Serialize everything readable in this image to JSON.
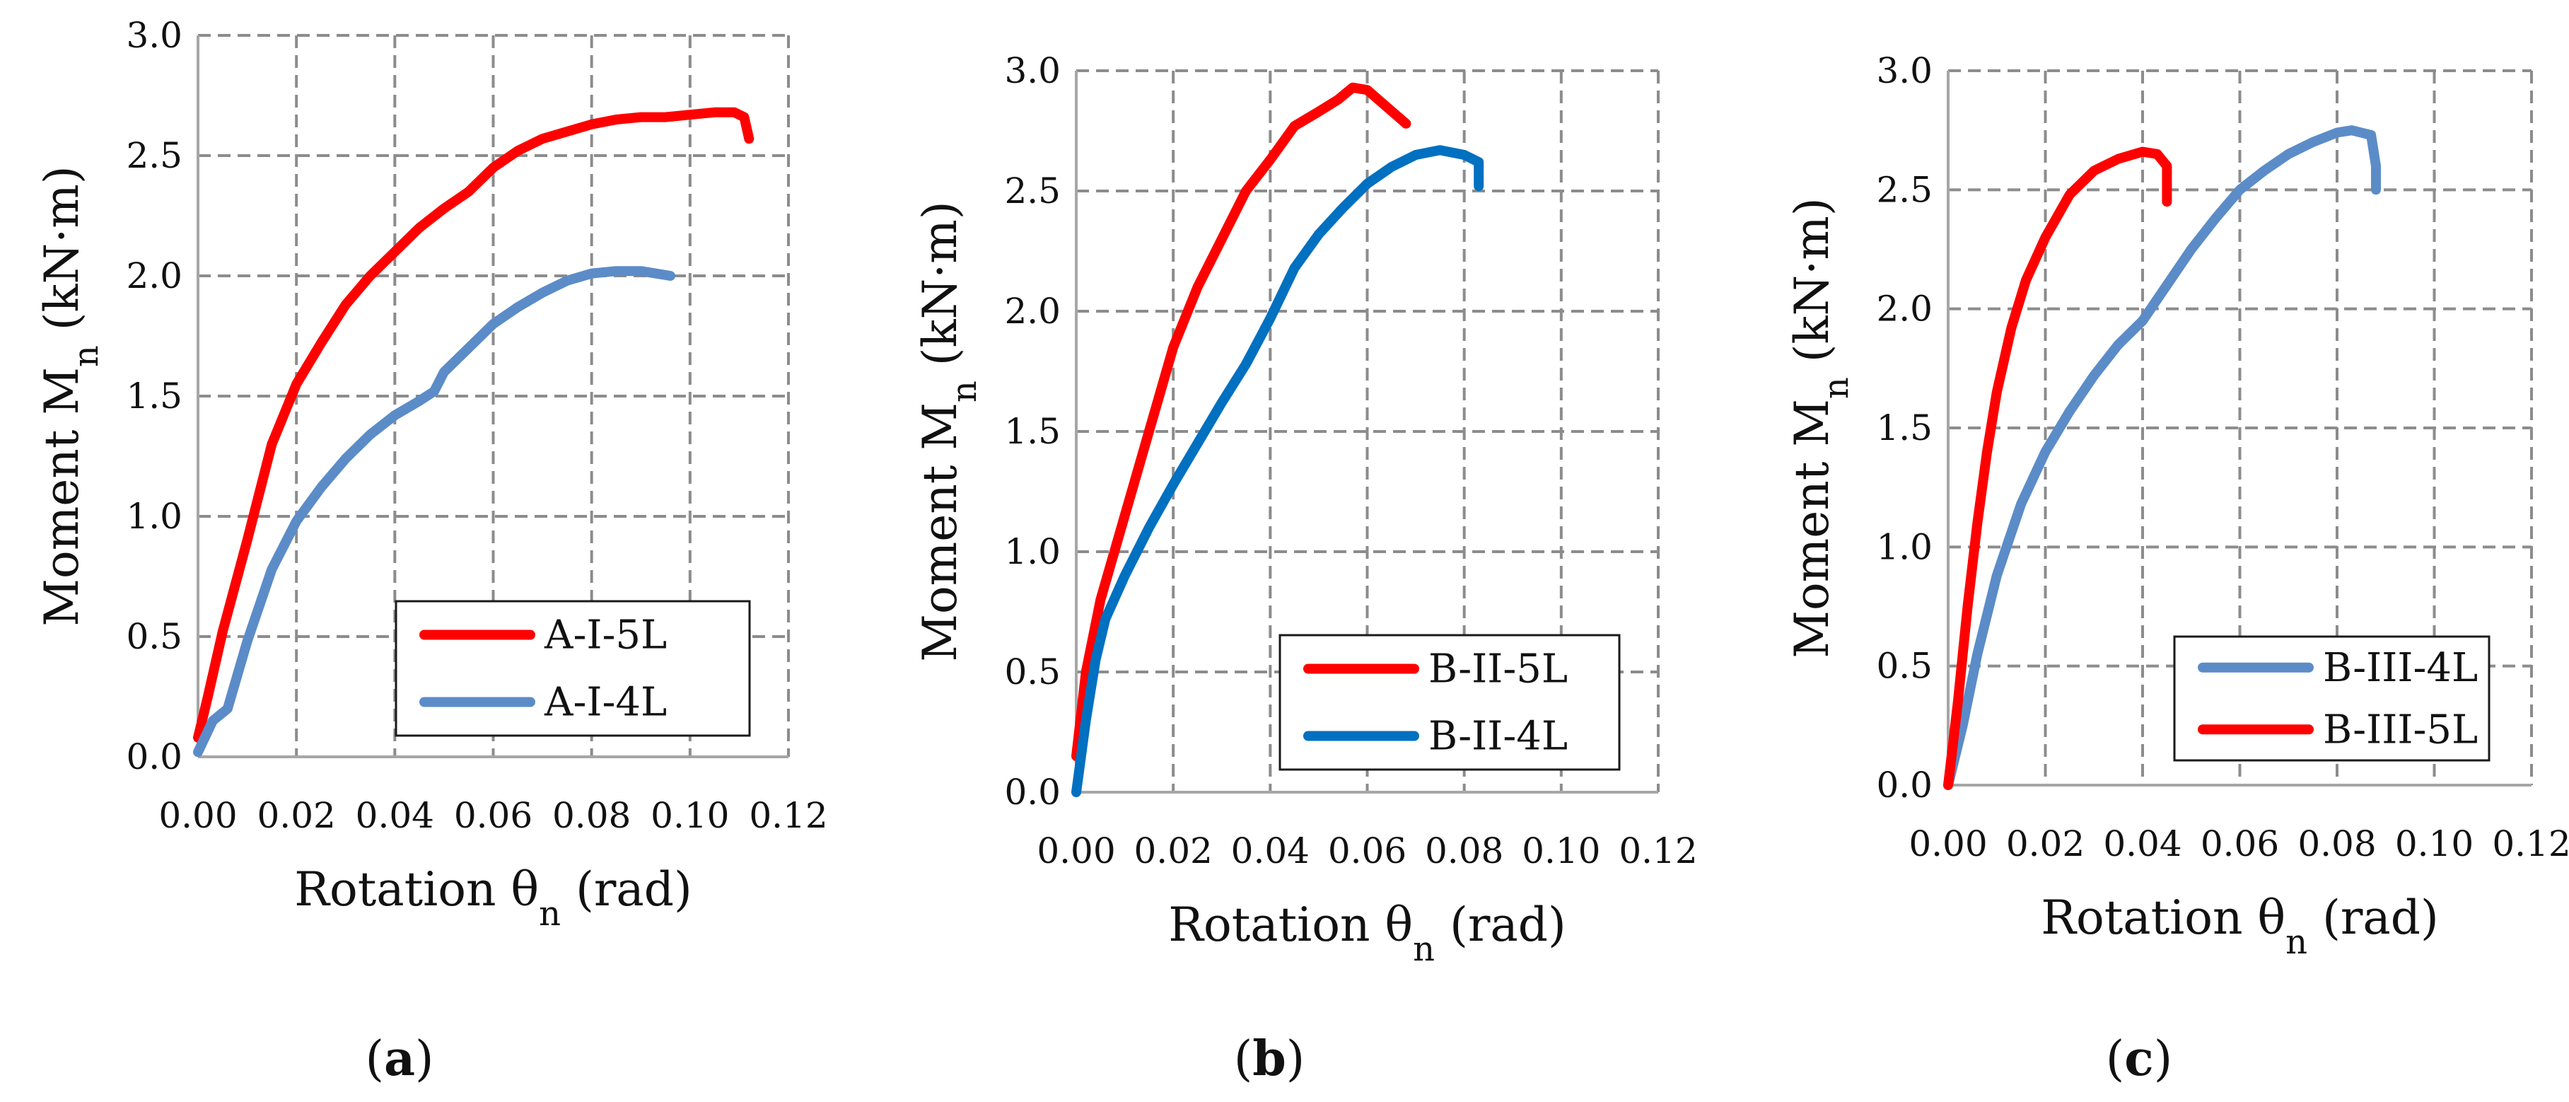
{
  "figure_captions": [
    "a",
    "b",
    "c"
  ],
  "chart_data": [
    {
      "id": "a",
      "type": "line",
      "title": "",
      "xlabel": "Rotation θn (rad)",
      "xlabel_main": "Rotation θ",
      "xlabel_sub": "n",
      "xlabel_unit": " (rad)",
      "ylabel": "Moment Mn (kN·m)",
      "ylabel_main": "Moment M",
      "ylabel_sub": "n",
      "ylabel_unit": " (kN·m)",
      "xlim": [
        0,
        0.12
      ],
      "ylim": [
        0,
        3.0
      ],
      "xticks": [
        0,
        0.02,
        0.04,
        0.06,
        0.08,
        0.1,
        0.12
      ],
      "xtick_labels": [
        "0.00",
        "0.02",
        "0.04",
        "0.06",
        "0.08",
        "0.10",
        "0.12"
      ],
      "yticks": [
        0,
        0.5,
        1.0,
        1.5,
        2.0,
        2.5,
        3.0
      ],
      "ytick_labels": [
        "0.0",
        "0.5",
        "1.0",
        "1.5",
        "2.0",
        "2.5",
        "3.0"
      ],
      "grid": true,
      "legend_position": "bottom-right",
      "series": [
        {
          "name": "A-I-5L",
          "color": "#FF0000",
          "points": [
            [
              0.0,
              0.08
            ],
            [
              0.002,
              0.25
            ],
            [
              0.005,
              0.52
            ],
            [
              0.01,
              0.9
            ],
            [
              0.015,
              1.3
            ],
            [
              0.02,
              1.55
            ],
            [
              0.025,
              1.72
            ],
            [
              0.03,
              1.88
            ],
            [
              0.035,
              2.0
            ],
            [
              0.04,
              2.1
            ],
            [
              0.045,
              2.2
            ],
            [
              0.05,
              2.28
            ],
            [
              0.055,
              2.35
            ],
            [
              0.06,
              2.45
            ],
            [
              0.065,
              2.52
            ],
            [
              0.07,
              2.57
            ],
            [
              0.075,
              2.6
            ],
            [
              0.08,
              2.63
            ],
            [
              0.085,
              2.65
            ],
            [
              0.09,
              2.66
            ],
            [
              0.095,
              2.66
            ],
            [
              0.1,
              2.67
            ],
            [
              0.105,
              2.68
            ],
            [
              0.109,
              2.68
            ],
            [
              0.111,
              2.66
            ],
            [
              0.112,
              2.57
            ]
          ]
        },
        {
          "name": "A-I-4L",
          "color": "#5B8CC8",
          "points": [
            [
              0.0,
              0.02
            ],
            [
              0.003,
              0.15
            ],
            [
              0.006,
              0.2
            ],
            [
              0.01,
              0.48
            ],
            [
              0.015,
              0.78
            ],
            [
              0.02,
              0.98
            ],
            [
              0.025,
              1.12
            ],
            [
              0.03,
              1.24
            ],
            [
              0.035,
              1.34
            ],
            [
              0.04,
              1.42
            ],
            [
              0.045,
              1.48
            ],
            [
              0.048,
              1.52
            ],
            [
              0.05,
              1.6
            ],
            [
              0.055,
              1.7
            ],
            [
              0.06,
              1.8
            ],
            [
              0.065,
              1.87
            ],
            [
              0.07,
              1.93
            ],
            [
              0.075,
              1.98
            ],
            [
              0.08,
              2.01
            ],
            [
              0.085,
              2.02
            ],
            [
              0.09,
              2.02
            ],
            [
              0.096,
              2.0
            ]
          ]
        }
      ]
    },
    {
      "id": "b",
      "type": "line",
      "title": "",
      "xlabel": "Rotation θn (rad)",
      "xlabel_main": "Rotation θ",
      "xlabel_sub": "n",
      "xlabel_unit": " (rad)",
      "ylabel": "Moment Mn (kN·m)",
      "ylabel_main": "Moment M",
      "ylabel_sub": "n",
      "ylabel_unit": " (kN·m)",
      "xlim": [
        0,
        0.12
      ],
      "ylim": [
        0,
        3.0
      ],
      "xticks": [
        0,
        0.02,
        0.04,
        0.06,
        0.08,
        0.1,
        0.12
      ],
      "xtick_labels": [
        "0.00",
        "0.02",
        "0.04",
        "0.06",
        "0.08",
        "0.10",
        "0.12"
      ],
      "yticks": [
        0,
        0.5,
        1.0,
        1.5,
        2.0,
        2.5,
        3.0
      ],
      "ytick_labels": [
        "0.0",
        "0.5",
        "1.0",
        "1.5",
        "2.0",
        "2.5",
        "3.0"
      ],
      "grid": true,
      "legend_position": "bottom-right",
      "series": [
        {
          "name": "B-II-5L",
          "color": "#FF0000",
          "points": [
            [
              0.0,
              0.15
            ],
            [
              0.002,
              0.5
            ],
            [
              0.005,
              0.8
            ],
            [
              0.01,
              1.15
            ],
            [
              0.015,
              1.5
            ],
            [
              0.02,
              1.85
            ],
            [
              0.025,
              2.1
            ],
            [
              0.03,
              2.3
            ],
            [
              0.035,
              2.5
            ],
            [
              0.04,
              2.63
            ],
            [
              0.045,
              2.77
            ],
            [
              0.05,
              2.83
            ],
            [
              0.054,
              2.88
            ],
            [
              0.057,
              2.93
            ],
            [
              0.06,
              2.92
            ],
            [
              0.064,
              2.85
            ],
            [
              0.068,
              2.78
            ]
          ]
        },
        {
          "name": "B-II-4L",
          "color": "#0070C0",
          "points": [
            [
              0.0,
              0.0
            ],
            [
              0.002,
              0.3
            ],
            [
              0.004,
              0.55
            ],
            [
              0.006,
              0.72
            ],
            [
              0.01,
              0.9
            ],
            [
              0.015,
              1.1
            ],
            [
              0.02,
              1.28
            ],
            [
              0.025,
              1.45
            ],
            [
              0.03,
              1.62
            ],
            [
              0.035,
              1.78
            ],
            [
              0.04,
              1.97
            ],
            [
              0.045,
              2.18
            ],
            [
              0.05,
              2.32
            ],
            [
              0.055,
              2.43
            ],
            [
              0.06,
              2.53
            ],
            [
              0.065,
              2.6
            ],
            [
              0.07,
              2.65
            ],
            [
              0.075,
              2.67
            ],
            [
              0.08,
              2.65
            ],
            [
              0.083,
              2.62
            ],
            [
              0.083,
              2.52
            ]
          ]
        }
      ]
    },
    {
      "id": "c",
      "type": "line",
      "title": "",
      "xlabel": "Rotation θn (rad)",
      "xlabel_main": "Rotation θ",
      "xlabel_sub": "n",
      "xlabel_unit": " (rad)",
      "ylabel": "Moment Mn (kN·m)",
      "ylabel_main": "Moment M",
      "ylabel_sub": "n",
      "ylabel_unit": " (kN·m)",
      "xlim": [
        0,
        0.12
      ],
      "ylim": [
        0,
        3.0
      ],
      "xticks": [
        0,
        0.02,
        0.04,
        0.06,
        0.08,
        0.1,
        0.12
      ],
      "xtick_labels": [
        "0.00",
        "0.02",
        "0.04",
        "0.06",
        "0.08",
        "0.10",
        "0.12"
      ],
      "yticks": [
        0,
        0.5,
        1.0,
        1.5,
        2.0,
        2.5,
        3.0
      ],
      "ytick_labels": [
        "0.0",
        "0.5",
        "1.0",
        "1.5",
        "2.0",
        "2.5",
        "3.0"
      ],
      "grid": true,
      "legend_position": "bottom-right",
      "series": [
        {
          "name": "B-III-4L",
          "color": "#5B8CC8",
          "points": [
            [
              0.0,
              0.0
            ],
            [
              0.003,
              0.25
            ],
            [
              0.006,
              0.55
            ],
            [
              0.01,
              0.88
            ],
            [
              0.015,
              1.18
            ],
            [
              0.02,
              1.4
            ],
            [
              0.025,
              1.57
            ],
            [
              0.03,
              1.72
            ],
            [
              0.035,
              1.85
            ],
            [
              0.04,
              1.95
            ],
            [
              0.045,
              2.1
            ],
            [
              0.05,
              2.25
            ],
            [
              0.055,
              2.38
            ],
            [
              0.06,
              2.5
            ],
            [
              0.065,
              2.58
            ],
            [
              0.07,
              2.65
            ],
            [
              0.075,
              2.7
            ],
            [
              0.08,
              2.74
            ],
            [
              0.083,
              2.75
            ],
            [
              0.087,
              2.73
            ],
            [
              0.088,
              2.6
            ],
            [
              0.088,
              2.5
            ]
          ]
        },
        {
          "name": "B-III-5L",
          "color": "#FF0000",
          "points": [
            [
              0.0,
              0.0
            ],
            [
              0.002,
              0.35
            ],
            [
              0.004,
              0.75
            ],
            [
              0.006,
              1.1
            ],
            [
              0.008,
              1.4
            ],
            [
              0.01,
              1.65
            ],
            [
              0.013,
              1.92
            ],
            [
              0.016,
              2.12
            ],
            [
              0.02,
              2.3
            ],
            [
              0.025,
              2.48
            ],
            [
              0.03,
              2.58
            ],
            [
              0.035,
              2.63
            ],
            [
              0.04,
              2.66
            ],
            [
              0.043,
              2.65
            ],
            [
              0.045,
              2.6
            ],
            [
              0.045,
              2.45
            ]
          ]
        }
      ]
    }
  ]
}
